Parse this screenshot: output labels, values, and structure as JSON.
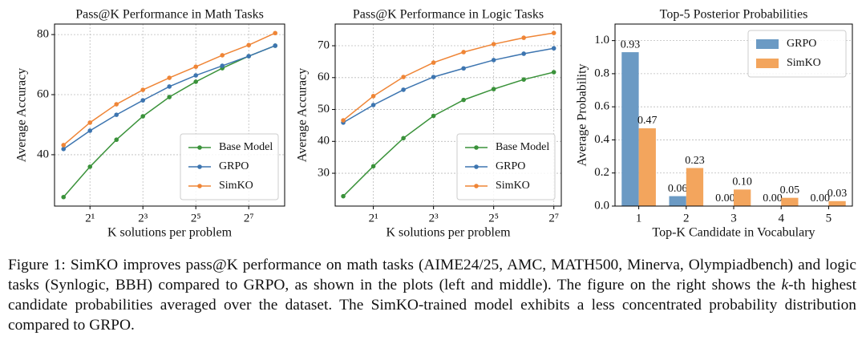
{
  "chart_data": [
    {
      "type": "line",
      "title": "Pass@K Performance in Math Tasks",
      "xlabel": "K solutions per problem",
      "ylabel": "Average Accuracy",
      "xscale": "log2",
      "x": [
        1,
        2,
        4,
        8,
        16,
        32,
        64,
        128,
        256
      ],
      "xlim": [
        0.79,
        328
      ],
      "xticks": [
        {
          "value": 2,
          "label": "2¹"
        },
        {
          "value": 8,
          "label": "2³"
        },
        {
          "value": 32,
          "label": "2⁵"
        },
        {
          "value": 128,
          "label": "2⁷"
        }
      ],
      "ylim": [
        22.9,
        83.5
      ],
      "yticks": [
        40,
        60,
        80
      ],
      "grid": true,
      "legend": "lower right",
      "series": [
        {
          "name": "Base Model",
          "color": "#3a923a",
          "values": [
            25.9,
            36,
            45,
            52.8,
            59.2,
            64.3,
            68.8,
            72.8,
            76.3
          ]
        },
        {
          "name": "GRPO",
          "color": "#3d75b0",
          "values": [
            41.9,
            48,
            53.3,
            58.1,
            62.7,
            66.4,
            69.6,
            72.8,
            76.3
          ]
        },
        {
          "name": "SimKO",
          "color": "#ef8536",
          "values": [
            43.2,
            50.7,
            56.8,
            61.6,
            65.6,
            69.3,
            73.1,
            76.5,
            80.5
          ]
        }
      ]
    },
    {
      "type": "line",
      "title": "Pass@K Performance in Logic Tasks",
      "xlabel": "K solutions per problem",
      "ylabel": "Average Accuracy",
      "xscale": "log2",
      "x": [
        1,
        2,
        4,
        8,
        16,
        32,
        64,
        128
      ],
      "xlim": [
        0.83,
        152
      ],
      "xticks": [
        {
          "value": 2,
          "label": "2¹"
        },
        {
          "value": 8,
          "label": "2³"
        },
        {
          "value": 32,
          "label": "2⁵"
        },
        {
          "value": 128,
          "label": "2⁷"
        }
      ],
      "ylim": [
        19.7,
        76.8
      ],
      "yticks": [
        30,
        40,
        50,
        60,
        70
      ],
      "grid": true,
      "legend": "lower right",
      "series": [
        {
          "name": "Base Model",
          "color": "#3a923a",
          "values": [
            22.8,
            32.2,
            41,
            48,
            53,
            56.4,
            59.4,
            61.7
          ]
        },
        {
          "name": "GRPO",
          "color": "#3d75b0",
          "values": [
            45.9,
            51.4,
            56.2,
            60.2,
            62.9,
            65.5,
            67.5,
            69.2
          ]
        },
        {
          "name": "SimKO",
          "color": "#ef8536",
          "values": [
            46.6,
            54.2,
            60.2,
            64.7,
            68,
            70.5,
            72.5,
            74
          ]
        }
      ]
    },
    {
      "type": "bar",
      "title": "Top-5  Posterior Probabilities",
      "xlabel": "Top-K Candidate in Vocabulary",
      "ylabel": "Average Probability",
      "categories": [
        "1",
        "2",
        "3",
        "4",
        "5"
      ],
      "ylim": [
        0,
        1.1
      ],
      "yticks": [
        {
          "value": 0,
          "label": "0.0"
        },
        0.2,
        0.4,
        0.6,
        0.8,
        {
          "value": 1,
          "label": "1.0"
        }
      ],
      "grid": true,
      "legend": "upper right",
      "series": [
        {
          "name": "GRPO",
          "color": "#6b9ac4",
          "values": [
            0.93,
            0.06,
            0,
            0,
            0
          ],
          "value_labels": [
            "0.93",
            "0.06",
            "0.00",
            "0.00",
            "0.00"
          ]
        },
        {
          "name": "SimKO",
          "color": "#f3a55d",
          "values": [
            0.47,
            0.23,
            0.1,
            0.05,
            0.03
          ],
          "value_labels": [
            "0.47",
            "0.23",
            "0.10",
            "0.05",
            "0.03"
          ]
        }
      ]
    }
  ],
  "caption": [
    "Figure 1: SimKO improves pass@K performance on math tasks (AIME24/25, AMC, MATH500, Minerva, Olympiadbench) and logic tasks (Synlogic, BBH) compared to GRPO, as shown in the plots (left and middle). The figure on the right shows the ",
    "k",
    "-th highest candidate probabilities averaged over the dataset. The SimKO-trained model exhibits a less concentrated probability distribution compared to GRPO."
  ]
}
